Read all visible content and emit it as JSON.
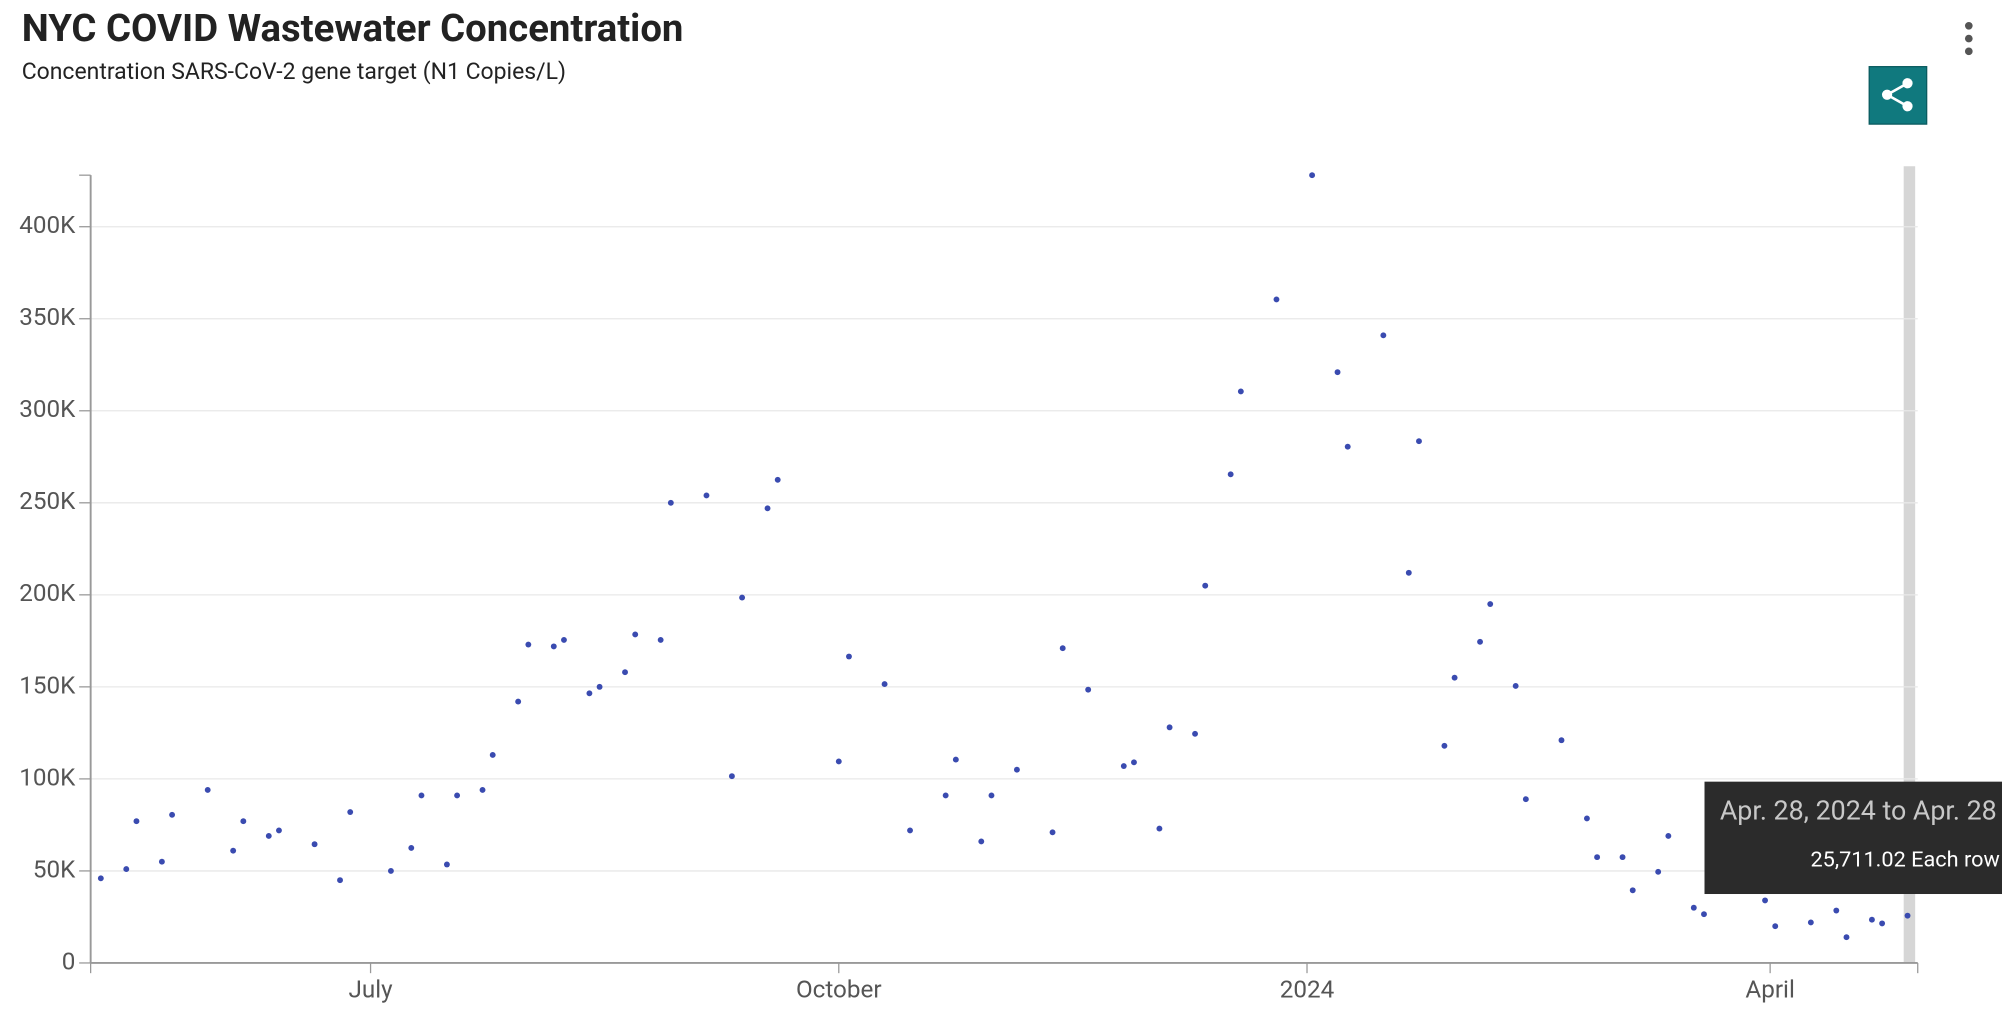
{
  "chart_data": {
    "type": "scatter",
    "title": "NYC COVID Wastewater Concentration",
    "subtitle": "Concentration SARS-CoV-2 gene target (N1 Copies/L)",
    "color": "#3a4bb0",
    "grid": true,
    "x": [
      "2023-05-09",
      "2023-05-14",
      "2023-05-16",
      "2023-05-21",
      "2023-05-23",
      "2023-05-30",
      "2023-06-04",
      "2023-06-06",
      "2023-06-11",
      "2023-06-13",
      "2023-06-20",
      "2023-06-25",
      "2023-06-27",
      "2023-07-05",
      "2023-07-09",
      "2023-07-11",
      "2023-07-16",
      "2023-07-18",
      "2023-07-23",
      "2023-07-25",
      "2023-07-30",
      "2023-08-01",
      "2023-08-06",
      "2023-08-08",
      "2023-08-13",
      "2023-08-15",
      "2023-08-20",
      "2023-08-22",
      "2023-08-27",
      "2023-08-29",
      "2023-09-05",
      "2023-09-10",
      "2023-09-12",
      "2023-09-17",
      "2023-09-19",
      "2023-10-01",
      "2023-10-03",
      "2023-10-10",
      "2023-10-15",
      "2023-10-22",
      "2023-10-24",
      "2023-10-29",
      "2023-10-31",
      "2023-11-05",
      "2023-11-12",
      "2023-11-14",
      "2023-11-19",
      "2023-11-26",
      "2023-11-28",
      "2023-12-03",
      "2023-12-05",
      "2023-12-10",
      "2023-12-12",
      "2023-12-17",
      "2023-12-19",
      "2023-12-26",
      "2024-01-02",
      "2024-01-07",
      "2024-01-09",
      "2024-01-16",
      "2024-01-21",
      "2024-01-23",
      "2024-01-28",
      "2024-01-30",
      "2024-02-04",
      "2024-02-06",
      "2024-02-11",
      "2024-02-13",
      "2024-02-20",
      "2024-02-25",
      "2024-02-27",
      "2024-03-03",
      "2024-03-05",
      "2024-03-10",
      "2024-03-12",
      "2024-03-17",
      "2024-03-19",
      "2024-03-31",
      "2024-04-02",
      "2024-04-09",
      "2024-04-14",
      "2024-04-16",
      "2024-04-21",
      "2024-04-23",
      "2024-04-28"
    ],
    "values": [
      46000,
      51000,
      77000,
      55000,
      80500,
      94000,
      61000,
      77000,
      69000,
      72000,
      64500,
      45000,
      82000,
      50000,
      62500,
      91000,
      53500,
      91000,
      94000,
      113000,
      142000,
      173000,
      172000,
      175500,
      146500,
      150000,
      158000,
      178500,
      175500,
      250000,
      254000,
      101500,
      198500,
      247000,
      262500,
      109500,
      166500,
      151500,
      72000,
      91000,
      110500,
      66000,
      91000,
      105000,
      71000,
      171000,
      148500,
      107000,
      109000,
      73000,
      128000,
      124500,
      205000,
      265500,
      310500,
      360500,
      428000,
      321000,
      280500,
      341000,
      212000,
      283500,
      118000,
      155000,
      174500,
      195000,
      150500,
      89000,
      121000,
      78500,
      57500,
      57500,
      39500,
      49500,
      69000,
      30000,
      26500,
      34000,
      20000,
      22000,
      28500,
      14000,
      23500,
      21500,
      25711.02
    ],
    "xlim": [
      "2023-05-07",
      "2024-04-30"
    ],
    "xticks": [
      {
        "value": "2023-07-01",
        "label": "July"
      },
      {
        "value": "2023-10-01",
        "label": "October"
      },
      {
        "value": "2024-01-01",
        "label": "2024"
      },
      {
        "value": "2024-04-01",
        "label": "April"
      }
    ],
    "ylim": [
      0,
      428000
    ],
    "yticks": [
      0,
      {
        "value": 50000,
        "label": "50K"
      },
      {
        "value": 100000,
        "label": "100K"
      },
      {
        "value": 150000,
        "label": "150K"
      },
      {
        "value": 200000,
        "label": "200K"
      },
      {
        "value": 250000,
        "label": "250K"
      },
      {
        "value": 300000,
        "label": "300K"
      },
      {
        "value": 350000,
        "label": "350K"
      },
      {
        "value": 400000,
        "label": "400K"
      }
    ],
    "tooltip": {
      "title": "Apr. 28, 2024 to Apr. 28",
      "text": "25,711.02 Each row"
    }
  }
}
